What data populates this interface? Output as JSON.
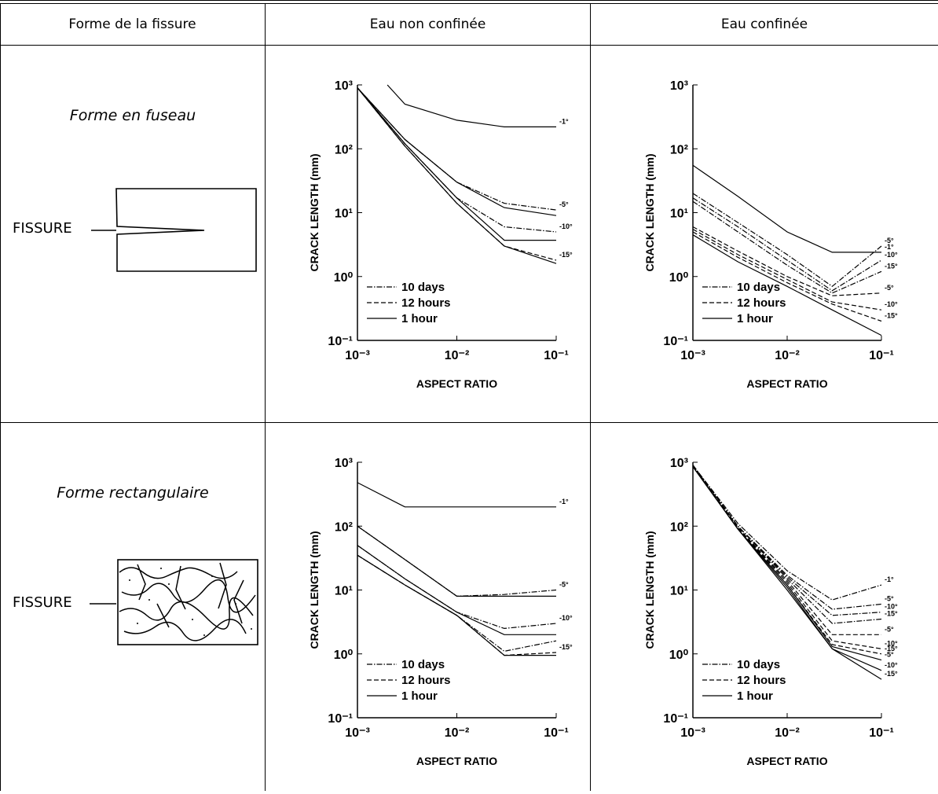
{
  "table": {
    "header": [
      "Forme de la fissure",
      "Eau non confinée",
      "Eau confinée"
    ],
    "rows": [
      {
        "shape": "Forme en fuseau",
        "fissure_label": "FISSURE",
        "charts": [
          {
            "type": "line",
            "xscale": "log",
            "yscale": "log",
            "ylabel": "CRACK LENGTH (mm)",
            "xlabel": "ASPECT RATIO",
            "xlim": [
              0.001,
              0.1
            ],
            "ylim": [
              0.1,
              1000
            ],
            "xticks": [
              {
                "value": 0.001,
                "label": "10⁻³"
              },
              {
                "value": 0.01,
                "label": "10⁻²"
              },
              {
                "value": 0.1,
                "label": "10⁻¹"
              }
            ],
            "yticks": [
              {
                "value": 0.1,
                "label": "10⁻¹"
              },
              {
                "value": 1,
                "label": "10⁰"
              },
              {
                "value": 10,
                "label": "10¹"
              },
              {
                "value": 100,
                "label": "10²"
              },
              {
                "value": 1000,
                "label": "10³"
              }
            ],
            "legend": [
              {
                "label": "10 days",
                "style": "dashdot"
              },
              {
                "label": "12 hours",
                "style": "dashed"
              },
              {
                "label": "1 hour",
                "style": "solid"
              }
            ],
            "x": [
              0.001,
              0.003,
              0.01,
              0.03,
              0.1
            ],
            "series": [
              {
                "style": "solid",
                "x": [
                  0.002,
                  0.003,
                  0.01,
                  0.03,
                  0.1
                ],
                "values": [
                  1000,
                  500,
                  280,
                  220,
                  220
                ],
                "label": "-1°"
              },
              {
                "style": "dashdot",
                "values": [
                  900,
                  140,
                  30,
                  14,
                  11
                ],
                "label": "-5°"
              },
              {
                "style": "solid",
                "values": [
                  900,
                  140,
                  30,
                  12,
                  9
                ]
              },
              {
                "style": "dashdot",
                "values": [
                  900,
                  120,
                  17,
                  6,
                  5
                ],
                "label": "-10°"
              },
              {
                "style": "solid",
                "values": [
                  900,
                  120,
                  17,
                  3.7,
                  3.7
                ]
              },
              {
                "style": "dashed",
                "values": [
                  900,
                  110,
                  14,
                  3,
                  1.8
                ],
                "label": "-15°"
              },
              {
                "style": "solid",
                "values": [
                  900,
                  110,
                  14,
                  3,
                  1.6
                ]
              }
            ]
          },
          {
            "type": "line",
            "xscale": "log",
            "yscale": "log",
            "ylabel": "CRACK LENGTH (mm)",
            "xlabel": "ASPECT RATIO",
            "xlim": [
              0.001,
              0.1
            ],
            "ylim": [
              0.1,
              1000
            ],
            "xticks": [
              {
                "value": 0.001,
                "label": "10⁻³"
              },
              {
                "value": 0.01,
                "label": "10⁻²"
              },
              {
                "value": 0.1,
                "label": "10⁻¹"
              }
            ],
            "yticks": [
              {
                "value": 0.1,
                "label": "10⁻¹"
              },
              {
                "value": 1,
                "label": "10⁰"
              },
              {
                "value": 10,
                "label": "10¹"
              },
              {
                "value": 100,
                "label": "10²"
              },
              {
                "value": 1000,
                "label": "10³"
              }
            ],
            "legend": [
              {
                "label": "10 days",
                "style": "dashdot"
              },
              {
                "label": "12 hours",
                "style": "dashed"
              },
              {
                "label": "1 hour",
                "style": "solid"
              }
            ],
            "x": [
              0.001,
              0.003,
              0.01,
              0.03,
              0.1
            ],
            "series": [
              {
                "style": "solid",
                "values": [
                  55,
                  18,
                  5,
                  2.4,
                  2.4
                ],
                "label": "-1°"
              },
              {
                "style": "dashdot",
                "values": [
                  20,
                  7,
                  2.2,
                  0.7,
                  3
                ],
                "label": "-5°"
              },
              {
                "style": "dashdot",
                "values": [
                  17,
                  6,
                  1.8,
                  0.6,
                  1.8
                ],
                "label": "-10°"
              },
              {
                "style": "dashdot",
                "values": [
                  15,
                  5,
                  1.5,
                  0.55,
                  1.2
                ],
                "label": "-15°"
              },
              {
                "style": "dashed",
                "values": [
                  6,
                  2.5,
                  1,
                  0.5,
                  0.55
                ],
                "label": "-5°"
              },
              {
                "style": "dashed",
                "values": [
                  5.5,
                  2.2,
                  0.9,
                  0.4,
                  0.3
                ],
                "label": "-10°"
              },
              {
                "style": "dashed",
                "values": [
                  5,
                  2,
                  0.8,
                  0.37,
                  0.2
                ],
                "label": "-15°"
              },
              {
                "style": "solid",
                "values": [
                  4.5,
                  1.7,
                  0.7,
                  0.3,
                  0.12
                ]
              }
            ]
          }
        ]
      },
      {
        "shape": "Forme rectangulaire",
        "fissure_label": "FISSURE",
        "charts": [
          {
            "type": "line",
            "xscale": "log",
            "yscale": "log",
            "ylabel": "CRACK LENGTH (mm)",
            "xlabel": "ASPECT RATIO",
            "xlim": [
              0.001,
              0.1
            ],
            "ylim": [
              0.1,
              1000
            ],
            "xticks": [
              {
                "value": 0.001,
                "label": "10⁻³"
              },
              {
                "value": 0.01,
                "label": "10⁻²"
              },
              {
                "value": 0.1,
                "label": "10⁻¹"
              }
            ],
            "yticks": [
              {
                "value": 0.1,
                "label": "10⁻¹"
              },
              {
                "value": 1,
                "label": "10⁰"
              },
              {
                "value": 10,
                "label": "10¹"
              },
              {
                "value": 100,
                "label": "10²"
              },
              {
                "value": 1000,
                "label": "10³"
              }
            ],
            "legend": [
              {
                "label": "10 days",
                "style": "dashdot"
              },
              {
                "label": "12 hours",
                "style": "dashed"
              },
              {
                "label": "1 hour",
                "style": "solid"
              }
            ],
            "x": [
              0.001,
              0.003,
              0.01,
              0.03,
              0.1
            ],
            "series": [
              {
                "style": "solid",
                "values": [
                  480,
                  200,
                  200,
                  200,
                  200
                ],
                "label": "-1°"
              },
              {
                "style": "dashdot",
                "values": [
                  100,
                  30,
                  8,
                  8.5,
                  10
                ],
                "label": "-5°"
              },
              {
                "style": "solid",
                "values": [
                  100,
                  30,
                  8,
                  8,
                  8
                ]
              },
              {
                "style": "dashdot",
                "values": [
                  50,
                  15,
                  4.5,
                  2.5,
                  3
                ],
                "label": "-10°"
              },
              {
                "style": "solid",
                "values": [
                  50,
                  15,
                  4.5,
                  2,
                  2
                ]
              },
              {
                "style": "dashdot",
                "values": [
                  35,
                  12,
                  4,
                  1.1,
                  1.6
                ]
              },
              {
                "style": "dashed",
                "values": [
                  35,
                  12,
                  4,
                  0.95,
                  1.05
                ],
                "label": "-15°"
              },
              {
                "style": "solid",
                "values": [
                  35,
                  12,
                  4,
                  0.95,
                  0.95
                ]
              }
            ]
          },
          {
            "type": "line",
            "xscale": "log",
            "yscale": "log",
            "ylabel": "CRACK LENGTH (mm)",
            "xlabel": "ASPECT RATIO",
            "xlim": [
              0.001,
              0.1
            ],
            "ylim": [
              0.1,
              1000
            ],
            "xticks": [
              {
                "value": 0.001,
                "label": "10⁻³"
              },
              {
                "value": 0.01,
                "label": "10⁻²"
              },
              {
                "value": 0.1,
                "label": "10⁻¹"
              }
            ],
            "yticks": [
              {
                "value": 0.1,
                "label": "10⁻¹"
              },
              {
                "value": 1,
                "label": "10⁰"
              },
              {
                "value": 10,
                "label": "10¹"
              },
              {
                "value": 100,
                "label": "10²"
              },
              {
                "value": 1000,
                "label": "10³"
              }
            ],
            "legend": [
              {
                "label": "10 days",
                "style": "dashdot"
              },
              {
                "label": "12 hours",
                "style": "dashed"
              },
              {
                "label": "1 hour",
                "style": "solid"
              }
            ],
            "x": [
              0.001,
              0.003,
              0.01,
              0.03,
              0.1
            ],
            "series": [
              {
                "style": "dashdot",
                "values": [
                  900,
                  110,
                  20,
                  7,
                  12
                ],
                "label": "-1°"
              },
              {
                "style": "dashdot",
                "values": [
                  900,
                  100,
                  17,
                  5,
                  6
                ],
                "label": "-5°"
              },
              {
                "style": "dashdot",
                "values": [
                  900,
                  100,
                  16,
                  4,
                  4.5
                ],
                "label": "-10°"
              },
              {
                "style": "dashdot",
                "values": [
                  900,
                  100,
                  15,
                  3,
                  3.5
                ],
                "label": "-15°"
              },
              {
                "style": "dashed",
                "values": [
                  900,
                  95,
                  14,
                  2,
                  2
                ],
                "label": "-5°"
              },
              {
                "style": "dashed",
                "values": [
                  900,
                  95,
                  13,
                  1.6,
                  1.2
                ],
                "label": "-10°"
              },
              {
                "style": "dashed",
                "values": [
                  900,
                  95,
                  12,
                  1.4,
                  1
                ],
                "label": "-15°"
              },
              {
                "style": "solid",
                "values": [
                  850,
                  90,
                  12,
                  1.3,
                  0.8
                ],
                "label": "-5°"
              },
              {
                "style": "solid",
                "values": [
                  850,
                  90,
                  11,
                  1.2,
                  0.55
                ],
                "label": "-10°"
              },
              {
                "style": "solid",
                "values": [
                  850,
                  90,
                  10,
                  1.2,
                  0.4
                ],
                "label": "-15°"
              }
            ]
          }
        ]
      }
    ]
  }
}
